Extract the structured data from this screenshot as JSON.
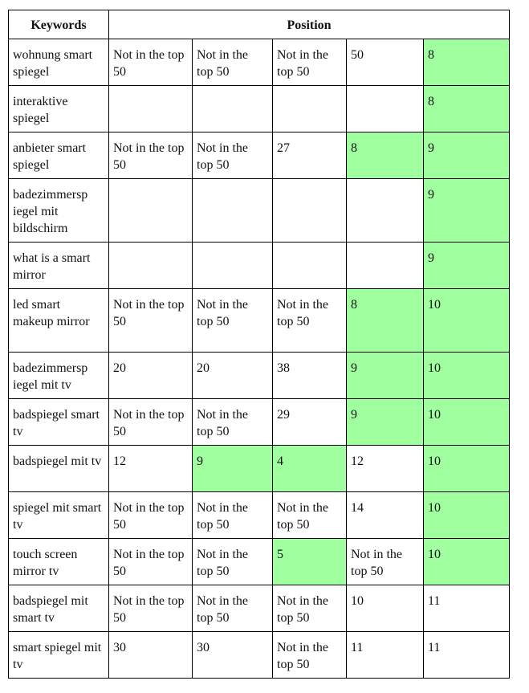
{
  "headers": {
    "keywords": "Keywords",
    "position": "Position"
  },
  "highlight_color": "#a0ff9f",
  "rows": [
    {
      "keyword": "wohnung smart spiegel",
      "cells": [
        {
          "t": "Not in the top 50"
        },
        {
          "t": "Not in the top 50"
        },
        {
          "t": "Not in the top 50"
        },
        {
          "t": "50"
        },
        {
          "t": "8",
          "hl": true
        }
      ]
    },
    {
      "keyword": "interaktive spiegel",
      "cells": [
        {
          "t": ""
        },
        {
          "t": ""
        },
        {
          "t": ""
        },
        {
          "t": ""
        },
        {
          "t": "8",
          "hl": true
        }
      ]
    },
    {
      "keyword": "anbieter smart spiegel",
      "cells": [
        {
          "t": "Not in the top 50"
        },
        {
          "t": "Not in the top 50"
        },
        {
          "t": "27"
        },
        {
          "t": "8",
          "hl": true
        },
        {
          "t": "9",
          "hl": true
        }
      ]
    },
    {
      "keyword": "badezimmersp iegel mit bildschirm",
      "cells": [
        {
          "t": ""
        },
        {
          "t": ""
        },
        {
          "t": ""
        },
        {
          "t": ""
        },
        {
          "t": "9",
          "hl": true
        }
      ]
    },
    {
      "keyword": "what is a smart mirror",
      "cells": [
        {
          "t": ""
        },
        {
          "t": ""
        },
        {
          "t": ""
        },
        {
          "t": ""
        },
        {
          "t": "9",
          "hl": true
        }
      ]
    },
    {
      "keyword": "led smart makeup mirror",
      "cells": [
        {
          "t": "Not in the top 50"
        },
        {
          "t": "Not in the top 50"
        },
        {
          "t": "Not in the top 50"
        },
        {
          "t": "8",
          "hl": true
        },
        {
          "t": "10",
          "hl": true
        }
      ]
    },
    {
      "keyword": "badezimmersp iegel mit tv",
      "cells": [
        {
          "t": "20"
        },
        {
          "t": "20"
        },
        {
          "t": "38"
        },
        {
          "t": "9",
          "hl": true
        },
        {
          "t": "10",
          "hl": true
        }
      ]
    },
    {
      "keyword": "badspiegel smart tv",
      "cells": [
        {
          "t": "Not in the top 50"
        },
        {
          "t": "Not in the top 50"
        },
        {
          "t": "29"
        },
        {
          "t": "9",
          "hl": true
        },
        {
          "t": "10",
          "hl": true
        }
      ]
    },
    {
      "keyword": "badspiegel mit tv",
      "cells": [
        {
          "t": "12"
        },
        {
          "t": "9",
          "hl": true
        },
        {
          "t": "4",
          "hl": true
        },
        {
          "t": "12"
        },
        {
          "t": "10",
          "hl": true
        }
      ]
    },
    {
      "keyword": "spiegel mit smart tv",
      "cells": [
        {
          "t": "Not in the top 50"
        },
        {
          "t": "Not in the top 50"
        },
        {
          "t": "Not in the top 50"
        },
        {
          "t": "14"
        },
        {
          "t": "10",
          "hl": true
        }
      ]
    },
    {
      "keyword": "touch screen mirror tv",
      "cells": [
        {
          "t": "Not in the top 50"
        },
        {
          "t": "Not in the top 50"
        },
        {
          "t": "5",
          "hl": true
        },
        {
          "t": "Not in the top 50"
        },
        {
          "t": "10",
          "hl": true
        }
      ]
    },
    {
      "keyword": "badspiegel mit smart tv",
      "cells": [
        {
          "t": "Not in the top 50"
        },
        {
          "t": "Not in the top 50"
        },
        {
          "t": "Not in the top 50"
        },
        {
          "t": "10"
        },
        {
          "t": "11"
        }
      ]
    },
    {
      "keyword": "smart spiegel mit tv",
      "cells": [
        {
          "t": "30"
        },
        {
          "t": "30"
        },
        {
          "t": "Not in the top 50"
        },
        {
          "t": "11"
        },
        {
          "t": "11"
        }
      ]
    }
  ]
}
